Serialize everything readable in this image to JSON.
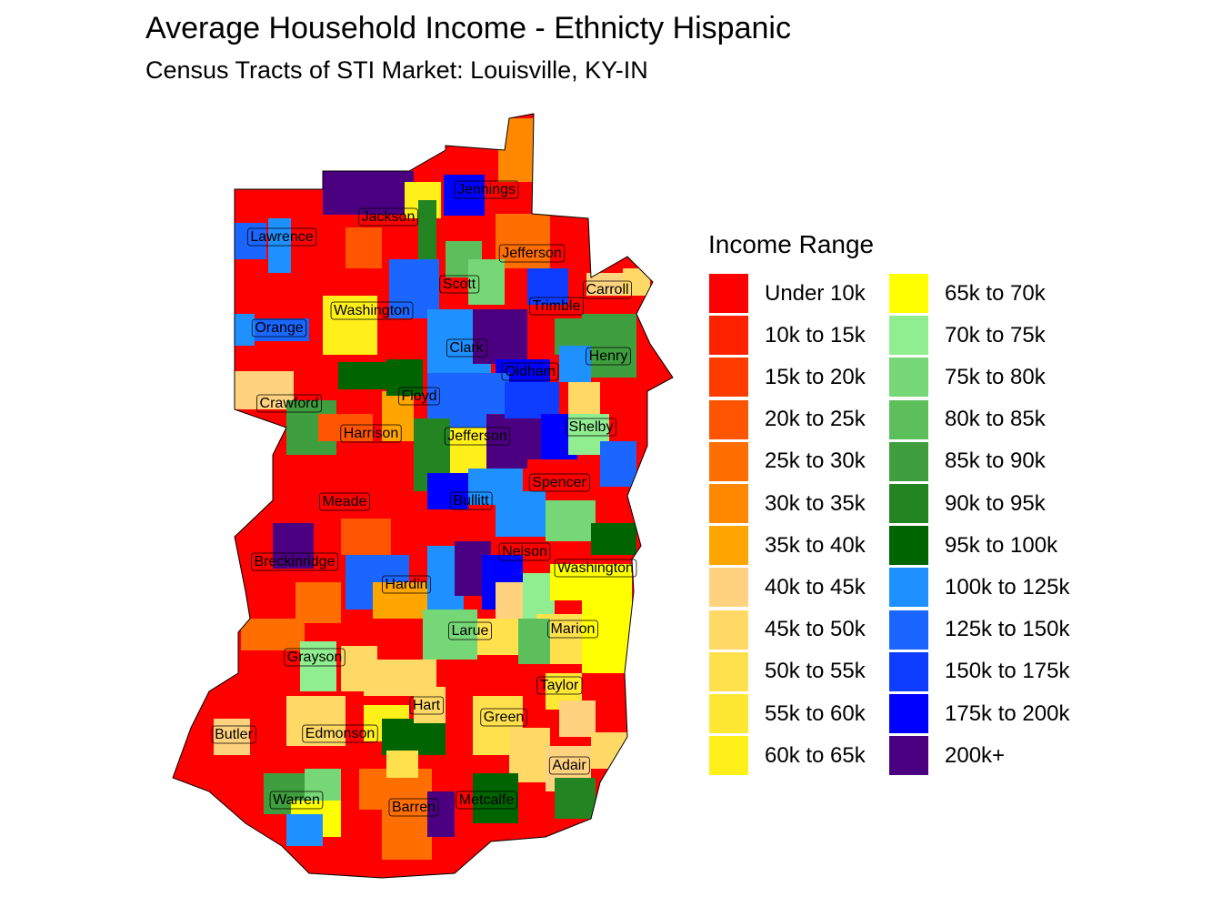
{
  "title": "Average Household Income - Ethnicty Hispanic",
  "subtitle": "Census Tracts of STI Market: Louisville, KY-IN",
  "legend": {
    "title": "Income Range",
    "items": [
      {
        "label": "Under 10k",
        "color": "#ff0000"
      },
      {
        "label": "10k to 15k",
        "color": "#ff2200"
      },
      {
        "label": "15k to 20k",
        "color": "#ff3b00"
      },
      {
        "label": "20k to 25k",
        "color": "#ff5500"
      },
      {
        "label": "25k to 30k",
        "color": "#ff6e00"
      },
      {
        "label": "30k to 35k",
        "color": "#ff8800"
      },
      {
        "label": "35k to 40k",
        "color": "#ffa500"
      },
      {
        "label": "40k to 45k",
        "color": "#ffd27f"
      },
      {
        "label": "45k to 50k",
        "color": "#ffd966"
      },
      {
        "label": "50k to 55k",
        "color": "#ffe04d"
      },
      {
        "label": "55k to 60k",
        "color": "#ffe833"
      },
      {
        "label": "60k to 65k",
        "color": "#fff01a"
      },
      {
        "label": "65k to 70k",
        "color": "#ffff00"
      },
      {
        "label": "70k to 75k",
        "color": "#90ee90"
      },
      {
        "label": "75k to 80k",
        "color": "#76d776"
      },
      {
        "label": "80k to 85k",
        "color": "#5cbf5c"
      },
      {
        "label": "85k to 90k",
        "color": "#3f9f3f"
      },
      {
        "label": "90k to 95k",
        "color": "#228522"
      },
      {
        "label": "95k to 100k",
        "color": "#006400"
      },
      {
        "label": "100k to 125k",
        "color": "#1e90ff"
      },
      {
        "label": "125k to 150k",
        "color": "#1a66ff"
      },
      {
        "label": "150k to 175k",
        "color": "#0f3dff"
      },
      {
        "label": "175k to 200k",
        "color": "#0000ff"
      },
      {
        "label": "200k+",
        "color": "#4b0082"
      }
    ]
  },
  "counties": [
    "Jennings",
    "Jackson",
    "Lawrence",
    "Jefferson",
    "Scott",
    "Carroll",
    "Trimble",
    "Washington",
    "Orange",
    "Clark",
    "Henry",
    "Oldham",
    "Crawford",
    "Floyd",
    "Harrison",
    "Jefferson",
    "Shelby",
    "Spencer",
    "Meade",
    "Bullitt",
    "Nelson",
    "Breckinridge",
    "Washington",
    "Hardin",
    "Marion",
    "Larue",
    "Grayson",
    "Taylor",
    "Hart",
    "Green",
    "Butler",
    "Edmonson",
    "Adair",
    "Warren",
    "Metcalfe",
    "Barren"
  ]
}
